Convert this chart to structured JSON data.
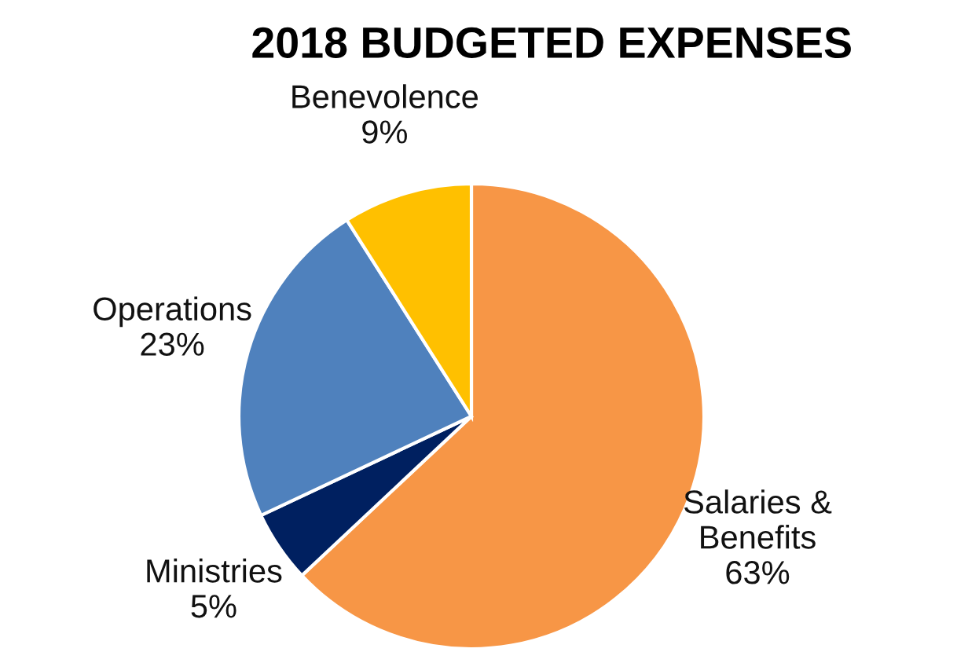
{
  "chart_data": {
    "type": "pie",
    "title": "2018 BUDGETED EXPENSES",
    "categories": [
      "Salaries &\nBenefits",
      "Ministries",
      "Operations",
      "Benevolence"
    ],
    "values": [
      63,
      5,
      23,
      9
    ],
    "value_labels": [
      "63%",
      "5%",
      "23%",
      "9%"
    ],
    "colors": [
      "#f79646",
      "#002060",
      "#4f81bd",
      "#ffc000"
    ],
    "legend": false
  }
}
